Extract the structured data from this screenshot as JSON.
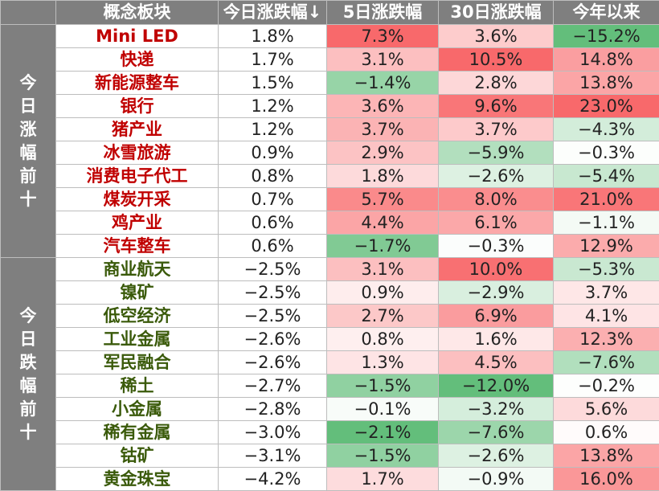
{
  "headers": [
    "",
    "概念板块",
    "今日涨跌幅↓",
    "5日涨跌幅",
    "30日涨跌幅",
    "今年以来"
  ],
  "groups": [
    {
      "label": "今日涨幅前十",
      "direction": "up",
      "rows": [
        {
          "name": "Mini LED",
          "today": "1.8%",
          "d5": "7.3%",
          "d30": "3.6%",
          "ytd": "−15.2%"
        },
        {
          "name": "快递",
          "today": "1.7%",
          "d5": "3.1%",
          "d30": "10.5%",
          "ytd": "14.8%"
        },
        {
          "name": "新能源整车",
          "today": "1.5%",
          "d5": "−1.4%",
          "d30": "2.8%",
          "ytd": "13.8%"
        },
        {
          "name": "银行",
          "today": "1.2%",
          "d5": "3.6%",
          "d30": "9.6%",
          "ytd": "23.0%"
        },
        {
          "name": "猪产业",
          "today": "1.2%",
          "d5": "3.7%",
          "d30": "3.7%",
          "ytd": "−4.3%"
        },
        {
          "name": "冰雪旅游",
          "today": "0.9%",
          "d5": "2.9%",
          "d30": "−5.9%",
          "ytd": "−0.3%"
        },
        {
          "name": "消费电子代工",
          "today": "0.8%",
          "d5": "1.8%",
          "d30": "−2.6%",
          "ytd": "−5.4%"
        },
        {
          "name": "煤炭开采",
          "today": "0.7%",
          "d5": "5.7%",
          "d30": "8.0%",
          "ytd": "21.0%"
        },
        {
          "name": "鸡产业",
          "today": "0.6%",
          "d5": "4.4%",
          "d30": "6.1%",
          "ytd": "−1.1%"
        },
        {
          "name": "汽车整车",
          "today": "0.6%",
          "d5": "−1.7%",
          "d30": "−0.3%",
          "ytd": "12.9%"
        }
      ]
    },
    {
      "label": "今日跌幅前十",
      "direction": "down",
      "rows": [
        {
          "name": "商业航天",
          "today": "−2.5%",
          "d5": "3.1%",
          "d30": "10.0%",
          "ytd": "−5.3%"
        },
        {
          "name": "镍矿",
          "today": "−2.5%",
          "d5": "0.9%",
          "d30": "−2.9%",
          "ytd": "3.7%"
        },
        {
          "name": "低空经济",
          "today": "−2.5%",
          "d5": "2.7%",
          "d30": "6.9%",
          "ytd": "4.1%"
        },
        {
          "name": "工业金属",
          "today": "−2.6%",
          "d5": "0.8%",
          "d30": "1.6%",
          "ytd": "12.3%"
        },
        {
          "name": "军民融合",
          "today": "−2.6%",
          "d5": "1.3%",
          "d30": "4.5%",
          "ytd": "−7.6%"
        },
        {
          "name": "稀土",
          "today": "−2.7%",
          "d5": "−1.5%",
          "d30": "−12.0%",
          "ytd": "−0.2%"
        },
        {
          "name": "小金属",
          "today": "−2.8%",
          "d5": "−0.1%",
          "d30": "−3.2%",
          "ytd": "5.6%"
        },
        {
          "name": "稀有金属",
          "today": "−3.0%",
          "d5": "−2.1%",
          "d30": "−7.6%",
          "ytd": "0.6%"
        },
        {
          "name": "钴矿",
          "today": "−3.1%",
          "d5": "−1.5%",
          "d30": "−2.6%",
          "ytd": "13.8%"
        },
        {
          "name": "黄金珠宝",
          "today": "−4.2%",
          "d5": "1.7%",
          "d30": "−0.9%",
          "ytd": "16.0%"
        }
      ]
    }
  ],
  "colors": {
    "header_bg": "#7f7f7f",
    "up_text": "#c00000",
    "down_text": "#3a5a0a",
    "heat_red": "#f8696b",
    "heat_green": "#63be7b"
  }
}
